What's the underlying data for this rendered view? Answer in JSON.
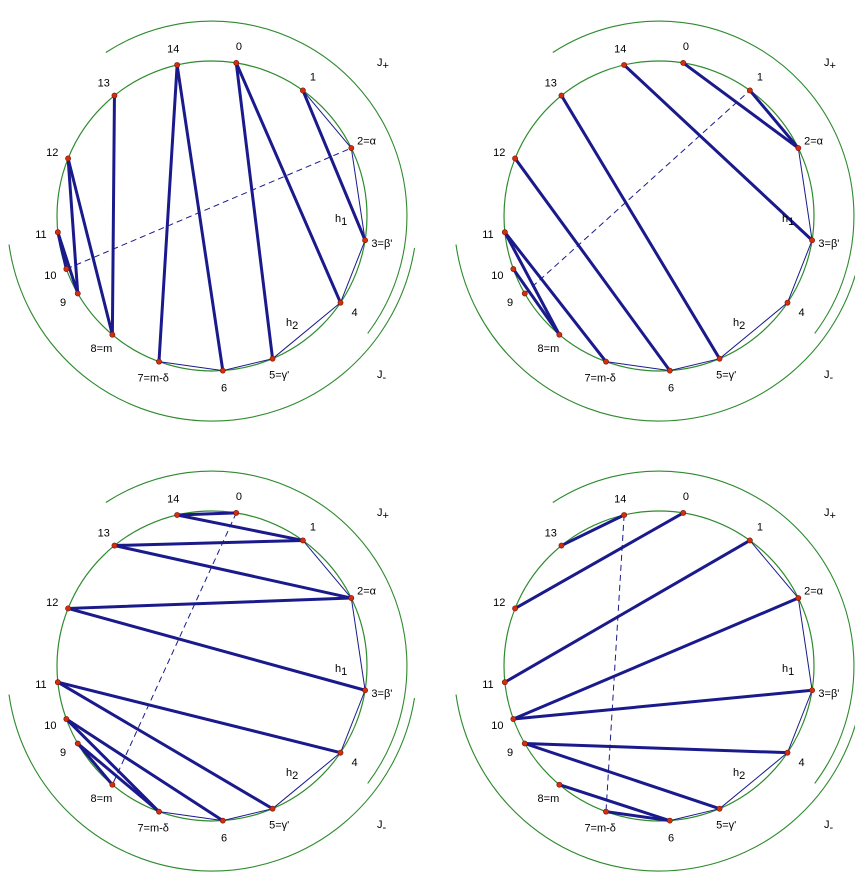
{
  "panels": [
    {
      "id": "top-left",
      "point_labels": [
        "0",
        "1",
        "2=α",
        "3=β'",
        "4",
        "5=γ'",
        "6",
        "7=m-δ",
        "8=m",
        "9",
        "10",
        "11",
        "12",
        "13",
        "14"
      ],
      "chords": [
        [
          0,
          5
        ],
        [
          0,
          4
        ],
        [
          1,
          3
        ],
        [
          14,
          6
        ],
        [
          14,
          7
        ],
        [
          13,
          8
        ],
        [
          12,
          8
        ],
        [
          12,
          9
        ],
        [
          11,
          9
        ],
        [
          11,
          10
        ]
      ],
      "dashed_segment": [
        10,
        2
      ],
      "h_labels": [
        {
          "base": "h",
          "sub": "1"
        },
        {
          "base": "h",
          "sub": "2"
        }
      ],
      "j_labels": [
        {
          "base": "J",
          "sub": "+"
        },
        {
          "base": "J",
          "sub": "-"
        }
      ]
    },
    {
      "id": "top-right",
      "point_labels": [
        "0",
        "1",
        "2=α",
        "3=β'",
        "4",
        "5=γ'",
        "6",
        "7=m-δ",
        "8=m",
        "9",
        "10",
        "11",
        "12",
        "13",
        "14"
      ],
      "chords": [
        [
          0,
          2
        ],
        [
          1,
          2
        ],
        [
          14,
          3
        ],
        [
          13,
          5
        ],
        [
          12,
          6
        ],
        [
          11,
          7
        ],
        [
          11,
          8
        ],
        [
          10,
          8
        ]
      ],
      "dashed_segment": [
        9,
        1
      ],
      "h_labels": [
        {
          "base": "h",
          "sub": "1"
        },
        {
          "base": "h",
          "sub": "2"
        }
      ],
      "j_labels": [
        {
          "base": "J",
          "sub": "+"
        },
        {
          "base": "J",
          "sub": "-"
        }
      ]
    },
    {
      "id": "bottom-left",
      "point_labels": [
        "0",
        "1",
        "2=α",
        "3=β'",
        "4",
        "5=γ'",
        "6",
        "7=m-δ",
        "8=m",
        "9",
        "10",
        "11",
        "12",
        "13",
        "14"
      ],
      "chords": [
        [
          14,
          0
        ],
        [
          14,
          1
        ],
        [
          13,
          1
        ],
        [
          13,
          2
        ],
        [
          12,
          2
        ],
        [
          12,
          3
        ],
        [
          11,
          4
        ],
        [
          11,
          5
        ],
        [
          10,
          6
        ],
        [
          10,
          7
        ],
        [
          9,
          7
        ],
        [
          9,
          8
        ]
      ],
      "dashed_segment": [
        0,
        8
      ],
      "h_labels": [
        {
          "base": "h",
          "sub": "1"
        },
        {
          "base": "h",
          "sub": "2"
        }
      ],
      "j_labels": [
        {
          "base": "J",
          "sub": "+"
        },
        {
          "base": "J",
          "sub": "-"
        }
      ]
    },
    {
      "id": "bottom-right",
      "point_labels": [
        "0",
        "1",
        "2=α",
        "3=β'",
        "4",
        "5=γ'",
        "6",
        "7=m-δ",
        "8=m",
        "9",
        "10",
        "11",
        "12",
        "13",
        "14"
      ],
      "chords": [
        [
          14,
          13
        ],
        [
          0,
          12
        ],
        [
          1,
          11
        ],
        [
          2,
          10
        ],
        [
          3,
          10
        ],
        [
          4,
          9
        ],
        [
          5,
          9
        ],
        [
          8,
          6
        ],
        [
          7,
          6
        ]
      ],
      "dashed_segment": [
        14,
        7
      ],
      "h_labels": [
        {
          "base": "h",
          "sub": "1"
        },
        {
          "base": "h",
          "sub": "2"
        }
      ],
      "j_labels": [
        {
          "base": "J",
          "sub": "+"
        },
        {
          "base": "J",
          "sub": "-"
        }
      ]
    }
  ],
  "colors": {
    "circle": "#2e8b2e",
    "chord": "#1a1a8c",
    "point_fill": "#d03010"
  }
}
